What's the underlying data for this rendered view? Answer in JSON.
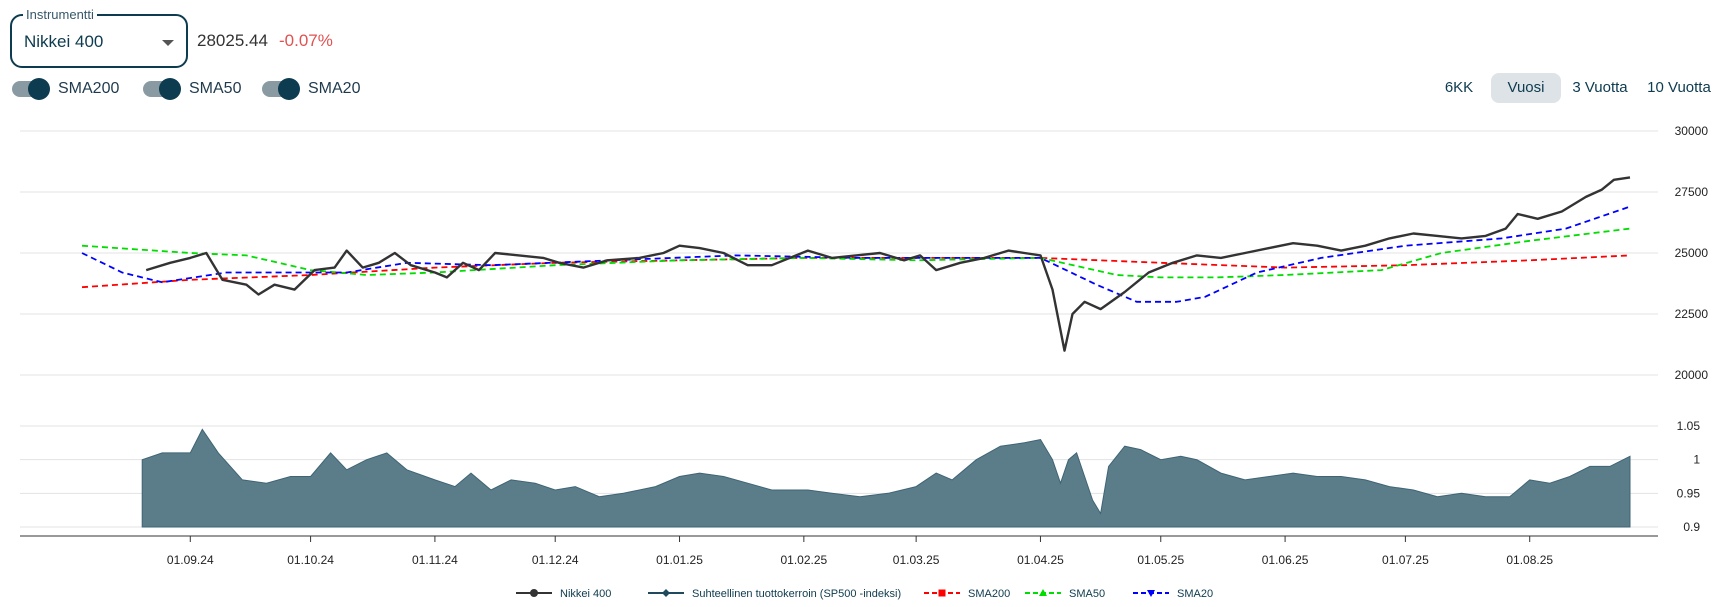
{
  "instrument": {
    "legend": "Instrumentti",
    "selected": "Nikkei 400",
    "price": "28025.44",
    "change": "-0.07%",
    "change_color": "#e05252"
  },
  "toggles": [
    {
      "label": "SMA200",
      "on": true
    },
    {
      "label": "SMA50",
      "on": true
    },
    {
      "label": "SMA20",
      "on": true
    }
  ],
  "ranges": [
    {
      "label": "6KK",
      "active": false
    },
    {
      "label": "Vuosi",
      "active": true
    },
    {
      "label": "3 Vuotta",
      "active": false
    },
    {
      "label": "10 Vuotta",
      "active": false
    }
  ],
  "chart_data": {
    "type": "line",
    "x_labels": [
      "01.09.24",
      "01.10.24",
      "01.11.24",
      "01.12.24",
      "01.01.25",
      "01.02.25",
      "01.03.25",
      "01.04.25",
      "01.05.25",
      "01.06.25",
      "01.07.25",
      "01.08.25"
    ],
    "main_panel": {
      "y_ticks": [
        "30000",
        "27500",
        "25000",
        "22500",
        "20000"
      ],
      "ylim": [
        20000,
        30000
      ],
      "series": [
        {
          "name": "Nikkei 400",
          "color": "#333333",
          "style": "solid",
          "points": [
            [
              "2024-08-21",
              24300
            ],
            [
              "2024-08-27",
              24600
            ],
            [
              "2024-09-01",
              24800
            ],
            [
              "2024-09-05",
              25000
            ],
            [
              "2024-09-09",
              23900
            ],
            [
              "2024-09-15",
              23700
            ],
            [
              "2024-09-18",
              23300
            ],
            [
              "2024-09-22",
              23700
            ],
            [
              "2024-09-27",
              23500
            ],
            [
              "2024-10-02",
              24300
            ],
            [
              "2024-10-07",
              24400
            ],
            [
              "2024-10-10",
              25100
            ],
            [
              "2024-10-14",
              24400
            ],
            [
              "2024-10-18",
              24600
            ],
            [
              "2024-10-22",
              25000
            ],
            [
              "2024-10-26",
              24500
            ],
            [
              "2024-11-01",
              24200
            ],
            [
              "2024-11-04",
              24000
            ],
            [
              "2024-11-08",
              24600
            ],
            [
              "2024-11-12",
              24300
            ],
            [
              "2024-11-16",
              25000
            ],
            [
              "2024-11-22",
              24900
            ],
            [
              "2024-11-28",
              24800
            ],
            [
              "2024-12-02",
              24600
            ],
            [
              "2024-12-08",
              24400
            ],
            [
              "2024-12-14",
              24700
            ],
            [
              "2024-12-22",
              24800
            ],
            [
              "2024-12-28",
              25000
            ],
            [
              "2025-01-01",
              25300
            ],
            [
              "2025-01-06",
              25200
            ],
            [
              "2025-01-12",
              25000
            ],
            [
              "2025-01-18",
              24500
            ],
            [
              "2025-01-24",
              24500
            ],
            [
              "2025-02-02",
              25100
            ],
            [
              "2025-02-08",
              24800
            ],
            [
              "2025-02-14",
              24900
            ],
            [
              "2025-02-20",
              25000
            ],
            [
              "2025-02-26",
              24700
            ],
            [
              "2025-03-02",
              24900
            ],
            [
              "2025-03-06",
              24300
            ],
            [
              "2025-03-12",
              24600
            ],
            [
              "2025-03-18",
              24800
            ],
            [
              "2025-03-24",
              25100
            ],
            [
              "2025-03-28",
              25000
            ],
            [
              "2025-04-01",
              24900
            ],
            [
              "2025-04-04",
              23500
            ],
            [
              "2025-04-07",
              21000
            ],
            [
              "2025-04-09",
              22500
            ],
            [
              "2025-04-12",
              23000
            ],
            [
              "2025-04-16",
              22700
            ],
            [
              "2025-04-22",
              23400
            ],
            [
              "2025-04-28",
              24200
            ],
            [
              "2025-05-04",
              24600
            ],
            [
              "2025-05-10",
              24900
            ],
            [
              "2025-05-16",
              24800
            ],
            [
              "2025-05-22",
              25000
            ],
            [
              "2025-05-28",
              25200
            ],
            [
              "2025-06-03",
              25400
            ],
            [
              "2025-06-09",
              25300
            ],
            [
              "2025-06-15",
              25100
            ],
            [
              "2025-06-21",
              25300
            ],
            [
              "2025-06-27",
              25600
            ],
            [
              "2025-07-03",
              25800
            ],
            [
              "2025-07-09",
              25700
            ],
            [
              "2025-07-15",
              25600
            ],
            [
              "2025-07-21",
              25700
            ],
            [
              "2025-07-26",
              26000
            ],
            [
              "2025-07-29",
              26600
            ],
            [
              "2025-08-03",
              26400
            ],
            [
              "2025-08-09",
              26700
            ],
            [
              "2025-08-15",
              27300
            ],
            [
              "2025-08-19",
              27600
            ],
            [
              "2025-08-22",
              28000
            ],
            [
              "2025-08-26",
              28100
            ]
          ]
        },
        {
          "name": "SMA200",
          "color": "#ff0000",
          "style": "dashed",
          "points": [
            [
              "2024-08-05",
              23600
            ],
            [
              "2024-09-01",
              23900
            ],
            [
              "2024-10-01",
              24100
            ],
            [
              "2024-11-01",
              24400
            ],
            [
              "2024-12-01",
              24600
            ],
            [
              "2025-01-01",
              24700
            ],
            [
              "2025-02-01",
              24800
            ],
            [
              "2025-03-01",
              24800
            ],
            [
              "2025-04-01",
              24800
            ],
            [
              "2025-05-01",
              24600
            ],
            [
              "2025-06-01",
              24400
            ],
            [
              "2025-07-01",
              24500
            ],
            [
              "2025-08-01",
              24700
            ],
            [
              "2025-08-26",
              24900
            ]
          ]
        },
        {
          "name": "SMA50",
          "color": "#00dd00",
          "style": "dashed",
          "points": [
            [
              "2024-08-05",
              25300
            ],
            [
              "2024-09-01",
              25000
            ],
            [
              "2024-09-15",
              24900
            ],
            [
              "2024-10-01",
              24300
            ],
            [
              "2024-10-15",
              24100
            ],
            [
              "2024-11-01",
              24200
            ],
            [
              "2024-12-01",
              24500
            ],
            [
              "2025-01-01",
              24700
            ],
            [
              "2025-02-01",
              24800
            ],
            [
              "2025-03-01",
              24700
            ],
            [
              "2025-04-01",
              24800
            ],
            [
              "2025-04-20",
              24100
            ],
            [
              "2025-05-01",
              24000
            ],
            [
              "2025-05-15",
              24000
            ],
            [
              "2025-06-01",
              24100
            ],
            [
              "2025-06-25",
              24300
            ],
            [
              "2025-07-10",
              25000
            ],
            [
              "2025-08-01",
              25500
            ],
            [
              "2025-08-26",
              26000
            ]
          ]
        },
        {
          "name": "SMA20",
          "color": "#0000ff",
          "style": "dashed",
          "points": [
            [
              "2024-08-05",
              25000
            ],
            [
              "2024-08-15",
              24200
            ],
            [
              "2024-08-25",
              23800
            ],
            [
              "2024-09-10",
              24200
            ],
            [
              "2024-09-25",
              24200
            ],
            [
              "2024-10-10",
              24200
            ],
            [
              "2024-10-25",
              24600
            ],
            [
              "2024-11-15",
              24500
            ],
            [
              "2024-12-15",
              24700
            ],
            [
              "2025-01-15",
              24900
            ],
            [
              "2025-02-15",
              24800
            ],
            [
              "2025-03-15",
              24800
            ],
            [
              "2025-04-01",
              24800
            ],
            [
              "2025-04-15",
              23700
            ],
            [
              "2025-04-25",
              23000
            ],
            [
              "2025-05-05",
              23000
            ],
            [
              "2025-05-12",
              23200
            ],
            [
              "2025-05-25",
              24200
            ],
            [
              "2025-06-10",
              24800
            ],
            [
              "2025-07-01",
              25300
            ],
            [
              "2025-07-25",
              25600
            ],
            [
              "2025-08-10",
              26000
            ],
            [
              "2025-08-26",
              26900
            ]
          ]
        }
      ]
    },
    "sub_panel": {
      "y_ticks": [
        "1.05",
        "1",
        "0.95",
        "0.9"
      ],
      "ylim": [
        0.9,
        1.05
      ],
      "series": [
        {
          "name": "Suhteellinen tuottokerroin (SP500 -indeksi)",
          "color": "#5b7d8a",
          "style": "area",
          "points": [
            [
              "2024-08-20",
              1.0
            ],
            [
              "2024-08-25",
              1.01
            ],
            [
              "2024-09-01",
              1.01
            ],
            [
              "2024-09-04",
              1.045
            ],
            [
              "2024-09-08",
              1.01
            ],
            [
              "2024-09-14",
              0.97
            ],
            [
              "2024-09-20",
              0.965
            ],
            [
              "2024-09-26",
              0.975
            ],
            [
              "2024-10-01",
              0.975
            ],
            [
              "2024-10-06",
              1.01
            ],
            [
              "2024-10-10",
              0.985
            ],
            [
              "2024-10-15",
              1.0
            ],
            [
              "2024-10-20",
              1.01
            ],
            [
              "2024-10-25",
              0.985
            ],
            [
              "2024-11-01",
              0.97
            ],
            [
              "2024-11-06",
              0.96
            ],
            [
              "2024-11-10",
              0.98
            ],
            [
              "2024-11-15",
              0.955
            ],
            [
              "2024-11-20",
              0.97
            ],
            [
              "2024-11-26",
              0.965
            ],
            [
              "2024-12-01",
              0.955
            ],
            [
              "2024-12-06",
              0.96
            ],
            [
              "2024-12-12",
              0.945
            ],
            [
              "2024-12-18",
              0.95
            ],
            [
              "2024-12-26",
              0.96
            ],
            [
              "2025-01-01",
              0.975
            ],
            [
              "2025-01-06",
              0.98
            ],
            [
              "2025-01-12",
              0.975
            ],
            [
              "2025-01-18",
              0.965
            ],
            [
              "2025-01-24",
              0.955
            ],
            [
              "2025-02-02",
              0.955
            ],
            [
              "2025-02-08",
              0.95
            ],
            [
              "2025-02-15",
              0.945
            ],
            [
              "2025-02-22",
              0.95
            ],
            [
              "2025-03-01",
              0.96
            ],
            [
              "2025-03-06",
              0.98
            ],
            [
              "2025-03-10",
              0.97
            ],
            [
              "2025-03-16",
              1.0
            ],
            [
              "2025-03-22",
              1.02
            ],
            [
              "2025-03-28",
              1.025
            ],
            [
              "2025-04-01",
              1.03
            ],
            [
              "2025-04-04",
              1.0
            ],
            [
              "2025-04-06",
              0.965
            ],
            [
              "2025-04-08",
              1.0
            ],
            [
              "2025-04-10",
              1.01
            ],
            [
              "2025-04-14",
              0.94
            ],
            [
              "2025-04-16",
              0.92
            ],
            [
              "2025-04-18",
              0.99
            ],
            [
              "2025-04-22",
              1.02
            ],
            [
              "2025-04-26",
              1.015
            ],
            [
              "2025-05-01",
              1.0
            ],
            [
              "2025-05-06",
              1.005
            ],
            [
              "2025-05-10",
              1.0
            ],
            [
              "2025-05-16",
              0.98
            ],
            [
              "2025-05-22",
              0.97
            ],
            [
              "2025-05-28",
              0.975
            ],
            [
              "2025-06-03",
              0.98
            ],
            [
              "2025-06-09",
              0.975
            ],
            [
              "2025-06-15",
              0.975
            ],
            [
              "2025-06-21",
              0.97
            ],
            [
              "2025-06-27",
              0.96
            ],
            [
              "2025-07-03",
              0.955
            ],
            [
              "2025-07-09",
              0.945
            ],
            [
              "2025-07-15",
              0.95
            ],
            [
              "2025-07-21",
              0.945
            ],
            [
              "2025-07-27",
              0.945
            ],
            [
              "2025-08-01",
              0.97
            ],
            [
              "2025-08-06",
              0.965
            ],
            [
              "2025-08-11",
              0.975
            ],
            [
              "2025-08-16",
              0.99
            ],
            [
              "2025-08-21",
              0.99
            ],
            [
              "2025-08-26",
              1.005
            ]
          ]
        }
      ]
    },
    "legend": [
      {
        "name": "Nikkei 400",
        "color": "#333333",
        "marker": "circle",
        "style": "solid"
      },
      {
        "name": "Suhteellinen tuottokerroin (SP500 -indeksi)",
        "color": "#1f4a5e",
        "marker": "diamond",
        "style": "solid"
      },
      {
        "name": "SMA200",
        "color": "#ff0000",
        "marker": "square",
        "style": "dashed"
      },
      {
        "name": "SMA50",
        "color": "#00dd00",
        "marker": "triangle",
        "style": "dashed"
      },
      {
        "name": "SMA20",
        "color": "#0000ff",
        "marker": "triangle-down",
        "style": "dashed"
      }
    ],
    "legend_position": "bottom-center",
    "grid": true
  }
}
